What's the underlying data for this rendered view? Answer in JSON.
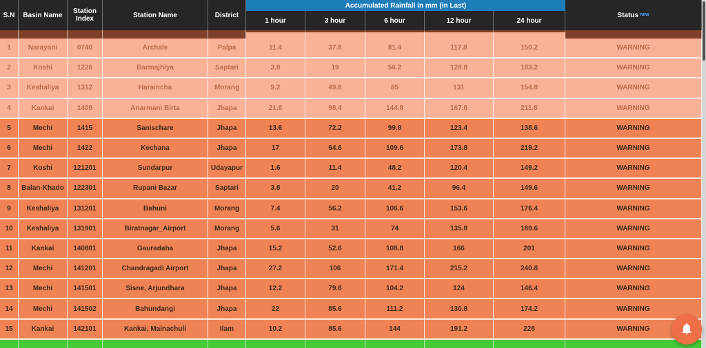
{
  "header": {
    "left_columns": [
      "S.N",
      "Basin Name",
      "Station Index",
      "Station Name",
      "District"
    ],
    "rainfall_banner": "Accumulated Rainfall in mm (in Last)",
    "rainfall_columns": [
      "1 hour",
      "3 hour",
      "6 hour",
      "12 hour",
      "24 hour"
    ],
    "status_column": "Status",
    "status_superscript": "new"
  },
  "rows": [
    {
      "sn": "1",
      "basin": "Narayani",
      "index": "0740",
      "station": "Archale",
      "district": "Palpa",
      "h1": "11.4",
      "h3": "37.8",
      "h6": "81.4",
      "h12": "117.8",
      "h24": "150.2",
      "status": "WARNING",
      "style": "light"
    },
    {
      "sn": "2",
      "basin": "Koshi",
      "index": "1226",
      "station": "Barmajhiya",
      "district": "Saptari",
      "h1": "3.8",
      "h3": "19",
      "h6": "56.2",
      "h12": "128.8",
      "h24": "183.2",
      "status": "WARNING",
      "style": "light"
    },
    {
      "sn": "3",
      "basin": "Keshaliya",
      "index": "1312",
      "station": "Haraincha",
      "district": "Morang",
      "h1": "9.2",
      "h3": "49.8",
      "h6": "85",
      "h12": "131",
      "h24": "154.8",
      "status": "WARNING",
      "style": "light"
    },
    {
      "sn": "4",
      "basin": "Kankai",
      "index": "1409",
      "station": "Anarmani Birta",
      "district": "Jhapa",
      "h1": "21.6",
      "h3": "98.4",
      "h6": "144.8",
      "h12": "167.6",
      "h24": "211.6",
      "status": "WARNING",
      "style": "light"
    },
    {
      "sn": "5",
      "basin": "Mechi",
      "index": "1415",
      "station": "Sanischare",
      "district": "Jhapa",
      "h1": "13.6",
      "h3": "72.2",
      "h6": "99.8",
      "h12": "123.4",
      "h24": "138.6",
      "status": "WARNING",
      "style": "dark"
    },
    {
      "sn": "6",
      "basin": "Mechi",
      "index": "1422",
      "station": "Kechana",
      "district": "Jhapa",
      "h1": "17",
      "h3": "64.6",
      "h6": "109.6",
      "h12": "173.8",
      "h24": "219.2",
      "status": "WARNING",
      "style": "dark"
    },
    {
      "sn": "7",
      "basin": "Koshi",
      "index": "121201",
      "station": "Sundarpur",
      "district": "Udayapur",
      "h1": "1.6",
      "h3": "11.4",
      "h6": "48.2",
      "h12": "120.4",
      "h24": "149.2",
      "status": "WARNING",
      "style": "dark"
    },
    {
      "sn": "8",
      "basin": "Balan-Khado",
      "index": "122301",
      "station": "Rupani Bazar",
      "district": "Saptari",
      "h1": "3.8",
      "h3": "20",
      "h6": "41.2",
      "h12": "96.4",
      "h24": "149.6",
      "status": "WARNING",
      "style": "dark"
    },
    {
      "sn": "9",
      "basin": "Keshaliya",
      "index": "131201",
      "station": "Bahuni",
      "district": "Morang",
      "h1": "7.4",
      "h3": "56.2",
      "h6": "106.6",
      "h12": "153.6",
      "h24": "176.4",
      "status": "WARNING",
      "style": "dark"
    },
    {
      "sn": "10",
      "basin": "Keshaliya",
      "index": "131901",
      "station": "Biratnagar_Airport",
      "district": "Morang",
      "h1": "5.6",
      "h3": "31",
      "h6": "74",
      "h12": "135.8",
      "h24": "189.6",
      "status": "WARNING",
      "style": "dark"
    },
    {
      "sn": "11",
      "basin": "Kankai",
      "index": "140801",
      "station": "Gauradaha",
      "district": "Jhapa",
      "h1": "15.2",
      "h3": "52.6",
      "h6": "108.8",
      "h12": "166",
      "h24": "201",
      "status": "WARNING",
      "style": "dark"
    },
    {
      "sn": "12",
      "basin": "Mechi",
      "index": "141201",
      "station": "Chandragadi Airport",
      "district": "Jhapa",
      "h1": "27.2",
      "h3": "106",
      "h6": "171.4",
      "h12": "215.2",
      "h24": "240.8",
      "status": "WARNING",
      "style": "dark"
    },
    {
      "sn": "13",
      "basin": "Mechi",
      "index": "141501",
      "station": "Sisne, Arjundhara",
      "district": "Jhapa",
      "h1": "12.2",
      "h3": "79.6",
      "h6": "104.2",
      "h12": "124",
      "h24": "146.4",
      "status": "WARNING",
      "style": "dark"
    },
    {
      "sn": "14",
      "basin": "Mechi",
      "index": "141502",
      "station": "Bahundangi",
      "district": "Jhapa",
      "h1": "22",
      "h3": "85.6",
      "h6": "111.2",
      "h12": "130.8",
      "h24": "174.2",
      "status": "WARNING",
      "style": "dark"
    },
    {
      "sn": "15",
      "basin": "Kankai",
      "index": "142101",
      "station": "Kankai, Mainachuli",
      "district": "Ilam",
      "h1": "10.2",
      "h3": "85.6",
      "h6": "144",
      "h12": "191.2",
      "h24": "228",
      "status": "WARNING",
      "style": "dark"
    }
  ],
  "colors": {
    "header_bg": "#262626",
    "banner_blue": "#1d7db8",
    "light_row": "#f9b198",
    "dark_row": "#f08355",
    "peek_brown": "#7e4028",
    "peek_green": "#46ca38",
    "fab_orange": "#ef7046",
    "warning_text_dark": "#3f2b1a",
    "warning_text_light": "#bc6c4b"
  },
  "fab": {
    "icon": "bell"
  }
}
